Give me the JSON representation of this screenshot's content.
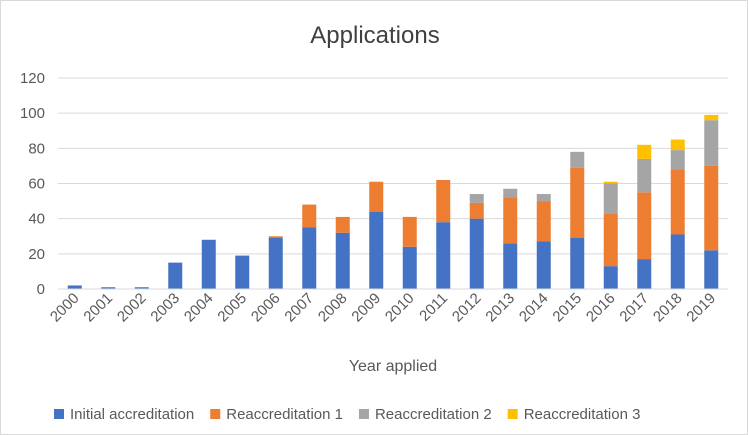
{
  "chart_data": {
    "type": "bar",
    "stacked": true,
    "title": "Applications",
    "xlabel": "Year applied",
    "ylabel": "",
    "ylim": [
      0,
      120
    ],
    "yticks": [
      0,
      20,
      40,
      60,
      80,
      100,
      120
    ],
    "grid": true,
    "legend_position": "bottom",
    "categories": [
      "2000",
      "2001",
      "2002",
      "2003",
      "2004",
      "2005",
      "2006",
      "2007",
      "2008",
      "2009",
      "2010",
      "2011",
      "2012",
      "2013",
      "2014",
      "2015",
      "2016",
      "2017",
      "2018",
      "2019"
    ],
    "series": [
      {
        "name": "Initial accreditation",
        "color": "#4472c4",
        "values": [
          2,
          1,
          1,
          15,
          28,
          19,
          29,
          35,
          32,
          44,
          24,
          38,
          40,
          26,
          27,
          29,
          13,
          17,
          31,
          22
        ]
      },
      {
        "name": "Reaccreditation 1",
        "color": "#ed7d31",
        "values": [
          0,
          0,
          0,
          0,
          0,
          0,
          1,
          13,
          9,
          17,
          17,
          24,
          9,
          26,
          23,
          40,
          30,
          38,
          37,
          48
        ]
      },
      {
        "name": "Reaccreditation 2",
        "color": "#a5a5a5",
        "values": [
          0,
          0,
          0,
          0,
          0,
          0,
          0,
          0,
          0,
          0,
          0,
          0,
          5,
          5,
          4,
          9,
          17,
          19,
          11,
          26
        ]
      },
      {
        "name": "Reaccreditation 3",
        "color": "#ffc000",
        "values": [
          0,
          0,
          0,
          0,
          0,
          0,
          0,
          0,
          0,
          0,
          0,
          0,
          0,
          0,
          0,
          0,
          1,
          8,
          6,
          3
        ]
      }
    ]
  }
}
